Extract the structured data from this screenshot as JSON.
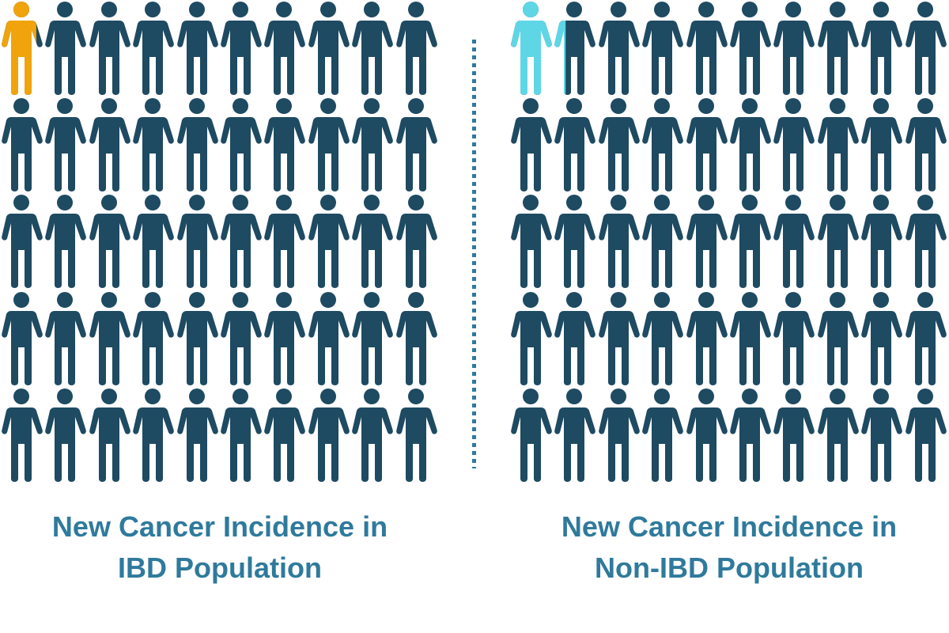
{
  "chart_data": {
    "type": "pictogram",
    "title": "",
    "layout": {
      "rows": 5,
      "cols": 10,
      "figures_per_panel": 50
    },
    "series": [
      {
        "name": "New Cancer Incidence in IBD Population",
        "highlighted_figures": 0.85,
        "total_figures": 50,
        "highlight_color": "#f0a30a"
      },
      {
        "name": "New Cancer Incidence in Non-IBD Population",
        "highlighted_figures": 1.3,
        "total_figures": 50,
        "highlight_color": "#5fd6e6"
      }
    ],
    "base_color": "#1e4a62",
    "divider": "dotted vertical line"
  },
  "panels": {
    "left": {
      "label_line1": "New Cancer Incidence in",
      "label_line2": "IBD Population",
      "fill": 0.85,
      "color": "#f0a30a"
    },
    "right": {
      "label_line1": "New Cancer Incidence in",
      "label_line2": "Non-IBD Population",
      "fill": 1.3,
      "color": "#5fd6e6"
    }
  },
  "colors": {
    "base": "#1e4a62",
    "label": "#2f7a9c",
    "divider": "#2f7a9c"
  }
}
